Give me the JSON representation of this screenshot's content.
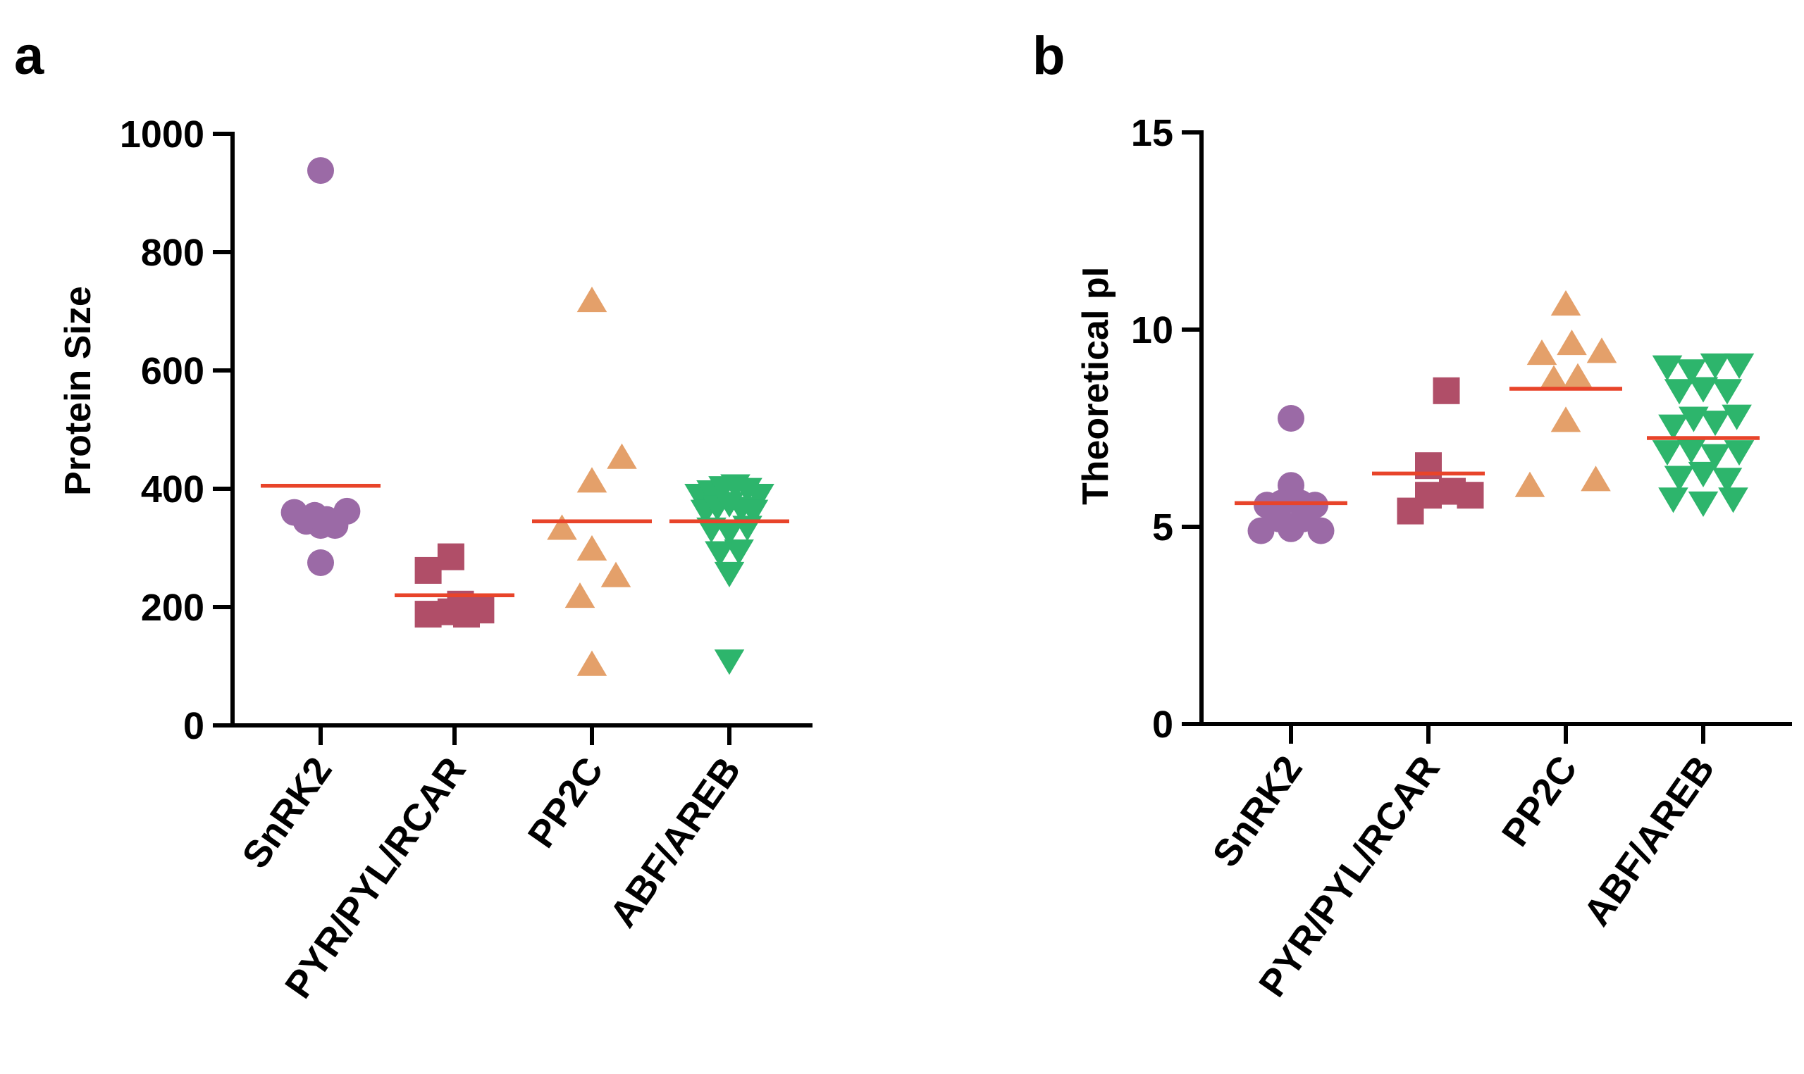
{
  "colors": {
    "snrk2": "#9B6AA6",
    "pyr": "#B04E68",
    "pp2c": "#E4A06A",
    "abf": "#2DB56C",
    "mean": "#E8442A",
    "axis": "#000000"
  },
  "chart_data": [
    {
      "type": "scatter",
      "panel_label": "a",
      "ylabel": "Protein Size",
      "ylim": [
        0,
        1000
      ],
      "yticks": [
        "0",
        "200",
        "400",
        "600",
        "800",
        "1000"
      ],
      "ytick_values": [
        0,
        200,
        400,
        600,
        800,
        1000
      ],
      "categories": [
        "SnRK2",
        "PYR/PYL/RCAR",
        "PP2C",
        "ABF/AREB"
      ],
      "grid": false,
      "series": [
        {
          "marker": "circle",
          "color_key": "snrk2",
          "points": [
            [
              0,
              938
            ],
            [
              -0.22,
              360
            ],
            [
              -0.12,
              345
            ],
            [
              0.0,
              338
            ],
            [
              0.12,
              338
            ],
            [
              0.22,
              362
            ],
            [
              -0.05,
              355
            ],
            [
              0.05,
              348
            ],
            [
              0.0,
              275
            ]
          ],
          "mean": 405
        },
        {
          "marker": "square",
          "color_key": "pyr",
          "points": [
            [
              -0.22,
              262
            ],
            [
              -0.03,
              285
            ],
            [
              -0.22,
              188
            ],
            [
              -0.03,
              192
            ],
            [
              0.1,
              188
            ],
            [
              0.22,
              195
            ],
            [
              0.05,
              205
            ]
          ],
          "mean": 220
        },
        {
          "marker": "triangle-up",
          "color_key": "pp2c",
          "points": [
            [
              0.0,
              715
            ],
            [
              0.25,
              450
            ],
            [
              0.0,
              410
            ],
            [
              -0.25,
              330
            ],
            [
              0.0,
              295
            ],
            [
              -0.1,
              215
            ],
            [
              0.2,
              250
            ],
            [
              0.0,
              100
            ]
          ],
          "mean": 345
        },
        {
          "marker": "triangle-down",
          "color_key": "abf",
          "points": [
            [
              -0.25,
              392
            ],
            [
              -0.15,
              398
            ],
            [
              -0.05,
              405
            ],
            [
              0.05,
              408
            ],
            [
              0.15,
              402
            ],
            [
              0.25,
              392
            ],
            [
              -0.2,
              365
            ],
            [
              -0.1,
              372
            ],
            [
              0.0,
              378
            ],
            [
              0.1,
              370
            ],
            [
              0.2,
              365
            ],
            [
              -0.15,
              335
            ],
            [
              0.0,
              330
            ],
            [
              0.15,
              338
            ],
            [
              -0.08,
              295
            ],
            [
              0.08,
              298
            ],
            [
              0.0,
              260
            ],
            [
              0.0,
              112
            ]
          ],
          "mean": 345
        }
      ]
    },
    {
      "type": "scatter",
      "panel_label": "b",
      "ylabel": "Theoretical pI",
      "ylim": [
        0,
        15
      ],
      "yticks": [
        "0",
        "5",
        "10",
        "15"
      ],
      "ytick_values": [
        0,
        5,
        10,
        15
      ],
      "categories": [
        "SnRK2",
        "PYR/PYL/RCAR",
        "PP2C",
        "ABF/AREB"
      ],
      "grid": false,
      "series": [
        {
          "marker": "circle",
          "color_key": "snrk2",
          "points": [
            [
              0.0,
              7.75
            ],
            [
              0.0,
              6.05
            ],
            [
              -0.2,
              5.55
            ],
            [
              -0.08,
              5.6
            ],
            [
              0.08,
              5.6
            ],
            [
              0.2,
              5.55
            ],
            [
              -0.25,
              4.9
            ],
            [
              0.0,
              4.95
            ],
            [
              0.25,
              4.9
            ],
            [
              -0.1,
              5.2
            ],
            [
              0.1,
              5.2
            ]
          ],
          "mean": 5.6
        },
        {
          "marker": "square",
          "color_key": "pyr",
          "points": [
            [
              0.15,
              8.45
            ],
            [
              0.0,
              6.55
            ],
            [
              0.2,
              5.9
            ],
            [
              0.0,
              5.8
            ],
            [
              0.35,
              5.8
            ],
            [
              -0.15,
              5.4
            ]
          ],
          "mean": 6.35
        },
        {
          "marker": "triangle-up",
          "color_key": "pp2c",
          "points": [
            [
              0.0,
              10.6
            ],
            [
              -0.2,
              9.35
            ],
            [
              0.05,
              9.6
            ],
            [
              0.3,
              9.4
            ],
            [
              -0.1,
              8.7
            ],
            [
              0.1,
              8.75
            ],
            [
              0.0,
              7.65
            ],
            [
              -0.3,
              6.0
            ],
            [
              0.25,
              6.15
            ]
          ],
          "mean": 8.5
        },
        {
          "marker": "triangle-down",
          "color_key": "abf",
          "points": [
            [
              -0.3,
              9.1
            ],
            [
              -0.1,
              9.0
            ],
            [
              0.1,
              9.15
            ],
            [
              0.3,
              9.15
            ],
            [
              -0.2,
              8.5
            ],
            [
              0.0,
              8.55
            ],
            [
              0.2,
              8.5
            ],
            [
              -0.25,
              7.6
            ],
            [
              -0.08,
              7.8
            ],
            [
              0.1,
              7.7
            ],
            [
              0.28,
              7.85
            ],
            [
              -0.3,
              6.95
            ],
            [
              -0.1,
              7.0
            ],
            [
              0.1,
              6.85
            ],
            [
              0.3,
              6.95
            ],
            [
              -0.2,
              6.3
            ],
            [
              0.0,
              6.4
            ],
            [
              0.2,
              6.25
            ],
            [
              -0.25,
              5.75
            ],
            [
              0.0,
              5.65
            ],
            [
              0.25,
              5.75
            ]
          ],
          "mean": 7.25
        }
      ]
    }
  ]
}
